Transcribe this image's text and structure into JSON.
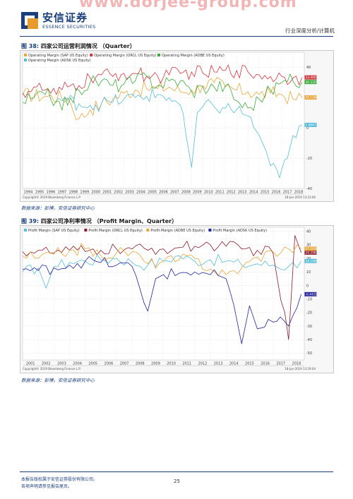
{
  "header": {
    "logo_cn": "安信证券",
    "logo_en": "ESSENCE SECURITIES",
    "watermark": "www.dorjee-group.com",
    "right_text": "行业深度分析/计算机"
  },
  "figures": [
    {
      "title_prefix": "图 38:",
      "title_cn": "四家公司运营利润情况",
      "title_en": "（Quarter）",
      "source": "数据来源：彭博，安信证券研究中心",
      "copyright": "Copyright© 2019 Bloomberg Finance L.P.",
      "timestamp": "18-Jan-2019 13:23:06"
    },
    {
      "title_prefix": "图 39:",
      "title_cn": "四家公司净利率情况",
      "title_en": "（Profit Margin、Quarter）",
      "source": "数据来源：彭博，安信证券研究中心",
      "copyright": "Copyright© 2019 Bloomberg Finance L.P.",
      "timestamp": "18-Jan-2019 13:29:04"
    }
  ],
  "chart_data": [
    {
      "type": "line",
      "title": "",
      "xlabel": "",
      "ylabel": "",
      "x_range": [
        1994,
        2019
      ],
      "x_ticks": [
        "1994",
        "1995",
        "1996",
        "1997",
        "1998",
        "1999",
        "2000",
        "2001",
        "2002",
        "2003",
        "2004",
        "2005",
        "2006",
        "2007",
        "2008",
        "2009",
        "2010",
        "2011",
        "2012",
        "2013",
        "2014",
        "2015",
        "2016",
        "2017",
        "2018"
      ],
      "ylim": [
        -40,
        50
      ],
      "y_ticks": [
        "40",
        "20",
        "0",
        "-20",
        "-40"
      ],
      "y_tick_values": [
        40,
        20,
        0,
        -20,
        -40
      ],
      "legend_position": "top-left",
      "series": [
        {
          "name": "Operating Margin (SAP US Equity)",
          "color": "#e8a63a",
          "last_label": "20.1184",
          "last": 20.12,
          "points": [
            [
              1994,
              22
            ],
            [
              1996,
              21
            ],
            [
              1998,
              20
            ],
            [
              1999,
              6
            ],
            [
              2000,
              12
            ],
            [
              2001,
              16
            ],
            [
              2002,
              19
            ],
            [
              2003,
              23
            ],
            [
              2004,
              25
            ],
            [
              2005,
              26
            ],
            [
              2006,
              26
            ],
            [
              2007,
              27
            ],
            [
              2008,
              24
            ],
            [
              2009,
              25
            ],
            [
              2010,
              28
            ],
            [
              2011,
              30
            ],
            [
              2012,
              27
            ],
            [
              2013,
              25
            ],
            [
              2014,
              24
            ],
            [
              2015,
              22
            ],
            [
              2016,
              23
            ],
            [
              2017,
              22
            ],
            [
              2018,
              19
            ],
            [
              2018.8,
              20.12
            ]
          ]
        },
        {
          "name": "Operating Margin (ORCL US Equity)",
          "color": "#d0363f",
          "last_label": "33.4001",
          "last": 33.4,
          "points": [
            [
              1994,
              23
            ],
            [
              1995,
              27
            ],
            [
              1996,
              25
            ],
            [
              1997,
              22
            ],
            [
              1998,
              27
            ],
            [
              1999,
              28
            ],
            [
              2000,
              33
            ],
            [
              2001,
              35
            ],
            [
              2002,
              34
            ],
            [
              2003,
              36
            ],
            [
              2004,
              36
            ],
            [
              2005,
              34
            ],
            [
              2006,
              34
            ],
            [
              2007,
              35
            ],
            [
              2008,
              36
            ],
            [
              2009,
              37
            ],
            [
              2010,
              36
            ],
            [
              2011,
              37
            ],
            [
              2012,
              38
            ],
            [
              2013,
              38
            ],
            [
              2014,
              37
            ],
            [
              2015,
              35
            ],
            [
              2016,
              34
            ],
            [
              2017,
              34
            ],
            [
              2018,
              33
            ],
            [
              2018.8,
              33.4
            ]
          ]
        },
        {
          "name": "Operating Margin (ADBE US Equity)",
          "color": "#3cab3a",
          "last_label": "30.3355",
          "last": 30.34,
          "points": [
            [
              1994,
              17
            ],
            [
              1995,
              20
            ],
            [
              1996,
              22
            ],
            [
              1997,
              18
            ],
            [
              1998,
              15
            ],
            [
              1999,
              25
            ],
            [
              2000,
              30
            ],
            [
              2001,
              31
            ],
            [
              2002,
              28
            ],
            [
              2003,
              29
            ],
            [
              2004,
              31
            ],
            [
              2005,
              34
            ],
            [
              2006,
              28
            ],
            [
              2007,
              31
            ],
            [
              2008,
              31
            ],
            [
              2009,
              24
            ],
            [
              2010,
              27
            ],
            [
              2011,
              27
            ],
            [
              2012,
              28
            ],
            [
              2013,
              18
            ],
            [
              2014,
              13
            ],
            [
              2015,
              19
            ],
            [
              2016,
              25
            ],
            [
              2017,
              30
            ],
            [
              2018,
              31
            ],
            [
              2018.8,
              30.34
            ]
          ]
        },
        {
          "name": "Operating Margin (ADSK US Equity)",
          "color": "#56bdd8",
          "last_label": "1.9847",
          "last": 1.98,
          "points": [
            [
              1997,
              19
            ],
            [
              1998,
              18
            ],
            [
              1999,
              16
            ],
            [
              2000,
              15
            ],
            [
              2001,
              16
            ],
            [
              2002,
              17
            ],
            [
              2003,
              19
            ],
            [
              2004,
              20
            ],
            [
              2005,
              21
            ],
            [
              2006,
              22
            ],
            [
              2007,
              20
            ],
            [
              2008,
              15
            ],
            [
              2009,
              -26
            ],
            [
              2009.5,
              10
            ],
            [
              2010,
              14
            ],
            [
              2011,
              14
            ],
            [
              2012,
              13
            ],
            [
              2013,
              12
            ],
            [
              2014,
              8
            ],
            [
              2015,
              -5
            ],
            [
              2015.6,
              -15
            ],
            [
              2016,
              -25
            ],
            [
              2016.8,
              -33
            ],
            [
              2017.5,
              -20
            ],
            [
              2018,
              -5
            ],
            [
              2018.8,
              1.98
            ]
          ]
        }
      ]
    },
    {
      "type": "line",
      "title": "",
      "xlabel": "",
      "ylabel": "",
      "x_range": [
        2001,
        2019
      ],
      "x_ticks": [
        "2001",
        "2002",
        "2003",
        "2004",
        "2005",
        "2006",
        "2007",
        "2008",
        "2009",
        "2010",
        "2011",
        "2012",
        "2013",
        "2014",
        "2015",
        "2016",
        "2017",
        "2018"
      ],
      "ylim": [
        -55,
        43
      ],
      "y_ticks": [
        "40",
        "30",
        "20",
        "10",
        "0",
        "-10",
        "-20",
        "-30",
        "-40",
        "-50"
      ],
      "y_tick_values": [
        40,
        30,
        20,
        10,
        0,
        -10,
        -20,
        -30,
        -40,
        -50
      ],
      "legend_position": "top-left",
      "series": [
        {
          "name": "Profit Margin (SAP US Equity)",
          "color": "#56bdd8",
          "last_label": "18.1005",
          "last": 18.1,
          "points": [
            [
              2001,
              10
            ],
            [
              2002,
              13
            ],
            [
              2002.5,
              -2
            ],
            [
              2003,
              14
            ],
            [
              2004,
              17
            ],
            [
              2005,
              18
            ],
            [
              2006,
              19
            ],
            [
              2007,
              20
            ],
            [
              2008,
              17
            ],
            [
              2009,
              15
            ],
            [
              2010,
              18
            ],
            [
              2011,
              22
            ],
            [
              2012,
              18
            ],
            [
              2013,
              19
            ],
            [
              2014,
              18
            ],
            [
              2015,
              15
            ],
            [
              2016,
              16
            ],
            [
              2017,
              15
            ],
            [
              2018,
              14
            ],
            [
              2018.8,
              18.1
            ]
          ]
        },
        {
          "name": "Profit Margin (ORCL US Equity)",
          "color": "#8b1a2b",
          "last_label": "24.2982",
          "last": 24.3,
          "points": [
            [
              2001,
              25
            ],
            [
              2002,
              26
            ],
            [
              2003,
              24
            ],
            [
              2004,
              26
            ],
            [
              2005,
              25
            ],
            [
              2006,
              26
            ],
            [
              2007,
              27
            ],
            [
              2008,
              27
            ],
            [
              2009,
              26
            ],
            [
              2010,
              27
            ],
            [
              2011,
              28
            ],
            [
              2012,
              29
            ],
            [
              2013,
              30
            ],
            [
              2014,
              29
            ],
            [
              2015,
              27
            ],
            [
              2016,
              26
            ],
            [
              2017,
              24
            ],
            [
              2018,
              -40
            ],
            [
              2018.4,
              37
            ],
            [
              2018.8,
              24.3
            ]
          ]
        },
        {
          "name": "Profit Margin (ADBE US Equity)",
          "color": "#e8a63a",
          "last_label": "27.1039",
          "last": 27.1,
          "points": [
            [
              2001,
              22
            ],
            [
              2002,
              20
            ],
            [
              2003,
              23
            ],
            [
              2004,
              26
            ],
            [
              2005,
              27
            ],
            [
              2006,
              22
            ],
            [
              2007,
              24
            ],
            [
              2008,
              25
            ],
            [
              2009,
              16
            ],
            [
              2010,
              18
            ],
            [
              2011,
              19
            ],
            [
              2012,
              20
            ],
            [
              2013,
              12
            ],
            [
              2014,
              8
            ],
            [
              2015,
              13
            ],
            [
              2016,
              21
            ],
            [
              2017,
              25
            ],
            [
              2018,
              27
            ],
            [
              2018.8,
              27.1
            ]
          ]
        },
        {
          "name": "Profit Margin (ADSK US Equity)",
          "color": "#23239a",
          "last_label": "-6.4421",
          "last": -6.44,
          "points": [
            [
              2001,
              12
            ],
            [
              2002,
              11
            ],
            [
              2003,
              13
            ],
            [
              2004,
              15
            ],
            [
              2005,
              18
            ],
            [
              2006,
              17
            ],
            [
              2007,
              15
            ],
            [
              2008,
              14
            ],
            [
              2009,
              -19
            ],
            [
              2009.5,
              5
            ],
            [
              2010,
              8
            ],
            [
              2011,
              9
            ],
            [
              2012,
              10
            ],
            [
              2013,
              8
            ],
            [
              2014,
              5
            ],
            [
              2015,
              -43
            ],
            [
              2015.5,
              -15
            ],
            [
              2016,
              -32
            ],
            [
              2016.7,
              -25
            ],
            [
              2017,
              -27
            ],
            [
              2017.7,
              -26
            ],
            [
              2018,
              -30
            ],
            [
              2018.8,
              -6.44
            ]
          ]
        }
      ]
    }
  ],
  "footer": {
    "line1": "本报告版权属于安信证券股份有限公司。",
    "line2": "各项声明请参见报告尾页。",
    "page_number": "25"
  }
}
